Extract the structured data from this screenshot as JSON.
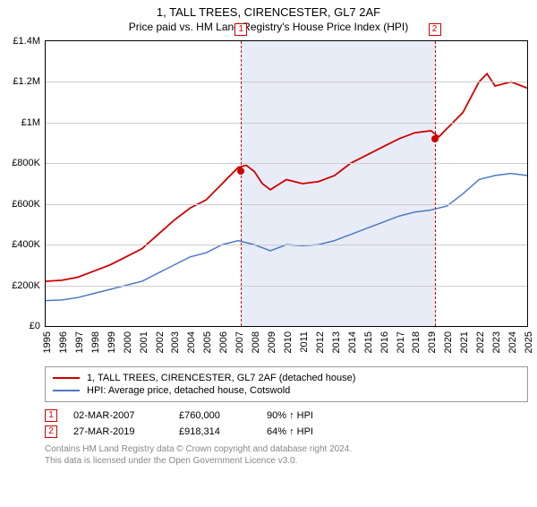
{
  "title": "1, TALL TREES, CIRENCESTER, GL7 2AF",
  "subtitle": "Price paid vs. HM Land Registry's House Price Index (HPI)",
  "chart": {
    "type": "line",
    "background_color": "#ffffff",
    "grid_color": "#cccccc",
    "border_color": "#000000",
    "x_axis": {
      "min": 1995,
      "max": 2025,
      "ticks": [
        1995,
        1996,
        1997,
        1998,
        1999,
        2000,
        2001,
        2002,
        2003,
        2004,
        2005,
        2006,
        2007,
        2008,
        2009,
        2010,
        2011,
        2012,
        2013,
        2014,
        2015,
        2016,
        2017,
        2018,
        2019,
        2020,
        2021,
        2022,
        2023,
        2024,
        2025
      ],
      "tick_fontsize": 11,
      "tick_rotation": -90
    },
    "y_axis": {
      "min": 0,
      "max": 1400000,
      "ticks": [
        0,
        200000,
        400000,
        600000,
        800000,
        1000000,
        1200000,
        1400000
      ],
      "tick_labels": [
        "£0",
        "£200K",
        "£400K",
        "£600K",
        "£800K",
        "£1M",
        "£1.2M",
        "£1.4M"
      ],
      "tick_fontsize": 11
    },
    "shaded_region": {
      "x_start": 2007.17,
      "x_end": 2019.23,
      "fill": "#e8ecf7"
    },
    "vlines": [
      {
        "x": 2007.17,
        "color": "#d00000",
        "dash": true,
        "marker_label": "1"
      },
      {
        "x": 2019.23,
        "color": "#d00000",
        "dash": true,
        "marker_label": "2"
      }
    ],
    "sale_points": [
      {
        "x": 2007.17,
        "y": 760000,
        "color": "#d00000"
      },
      {
        "x": 2019.23,
        "y": 918314,
        "color": "#d00000"
      }
    ],
    "series": [
      {
        "name": "property",
        "label": "1, TALL TREES, CIRENCESTER, GL7 2AF (detached house)",
        "color": "#d00000",
        "line_width": 1.8,
        "points": [
          [
            1995,
            220000
          ],
          [
            1996,
            225000
          ],
          [
            1997,
            240000
          ],
          [
            1998,
            270000
          ],
          [
            1999,
            300000
          ],
          [
            2000,
            340000
          ],
          [
            2001,
            380000
          ],
          [
            2002,
            450000
          ],
          [
            2003,
            520000
          ],
          [
            2004,
            580000
          ],
          [
            2005,
            620000
          ],
          [
            2006,
            700000
          ],
          [
            2007,
            780000
          ],
          [
            2007.5,
            790000
          ],
          [
            2008,
            760000
          ],
          [
            2008.5,
            700000
          ],
          [
            2009,
            670000
          ],
          [
            2010,
            720000
          ],
          [
            2011,
            700000
          ],
          [
            2012,
            710000
          ],
          [
            2013,
            740000
          ],
          [
            2014,
            800000
          ],
          [
            2015,
            840000
          ],
          [
            2016,
            880000
          ],
          [
            2017,
            920000
          ],
          [
            2018,
            950000
          ],
          [
            2019,
            960000
          ],
          [
            2019.5,
            930000
          ],
          [
            2020,
            970000
          ],
          [
            2021,
            1050000
          ],
          [
            2022,
            1200000
          ],
          [
            2022.5,
            1240000
          ],
          [
            2023,
            1180000
          ],
          [
            2024,
            1200000
          ],
          [
            2025,
            1170000
          ]
        ]
      },
      {
        "name": "hpi",
        "label": "HPI: Average price, detached house, Cotswold",
        "color": "#4a7bc8",
        "line_width": 1.5,
        "points": [
          [
            1995,
            125000
          ],
          [
            1996,
            128000
          ],
          [
            1997,
            140000
          ],
          [
            1998,
            160000
          ],
          [
            1999,
            180000
          ],
          [
            2000,
            200000
          ],
          [
            2001,
            220000
          ],
          [
            2002,
            260000
          ],
          [
            2003,
            300000
          ],
          [
            2004,
            340000
          ],
          [
            2005,
            360000
          ],
          [
            2006,
            400000
          ],
          [
            2007,
            420000
          ],
          [
            2008,
            400000
          ],
          [
            2009,
            370000
          ],
          [
            2010,
            400000
          ],
          [
            2011,
            395000
          ],
          [
            2012,
            400000
          ],
          [
            2013,
            420000
          ],
          [
            2014,
            450000
          ],
          [
            2015,
            480000
          ],
          [
            2016,
            510000
          ],
          [
            2017,
            540000
          ],
          [
            2018,
            560000
          ],
          [
            2019,
            570000
          ],
          [
            2020,
            590000
          ],
          [
            2021,
            650000
          ],
          [
            2022,
            720000
          ],
          [
            2023,
            740000
          ],
          [
            2024,
            750000
          ],
          [
            2025,
            740000
          ]
        ]
      }
    ]
  },
  "legend": {
    "items": [
      {
        "color": "#d00000",
        "label": "1, TALL TREES, CIRENCESTER, GL7 2AF (detached house)"
      },
      {
        "color": "#4a7bc8",
        "label": "HPI: Average price, detached house, Cotswold"
      }
    ]
  },
  "sales": [
    {
      "num": "1",
      "date": "02-MAR-2007",
      "price": "£760,000",
      "pct": "90% ↑ HPI",
      "box_color": "#d00000"
    },
    {
      "num": "2",
      "date": "27-MAR-2019",
      "price": "£918,314",
      "pct": "64% ↑ HPI",
      "box_color": "#d00000"
    }
  ],
  "footnote_line1": "Contains HM Land Registry data © Crown copyright and database right 2024.",
  "footnote_line2": "This data is licensed under the Open Government Licence v3.0."
}
